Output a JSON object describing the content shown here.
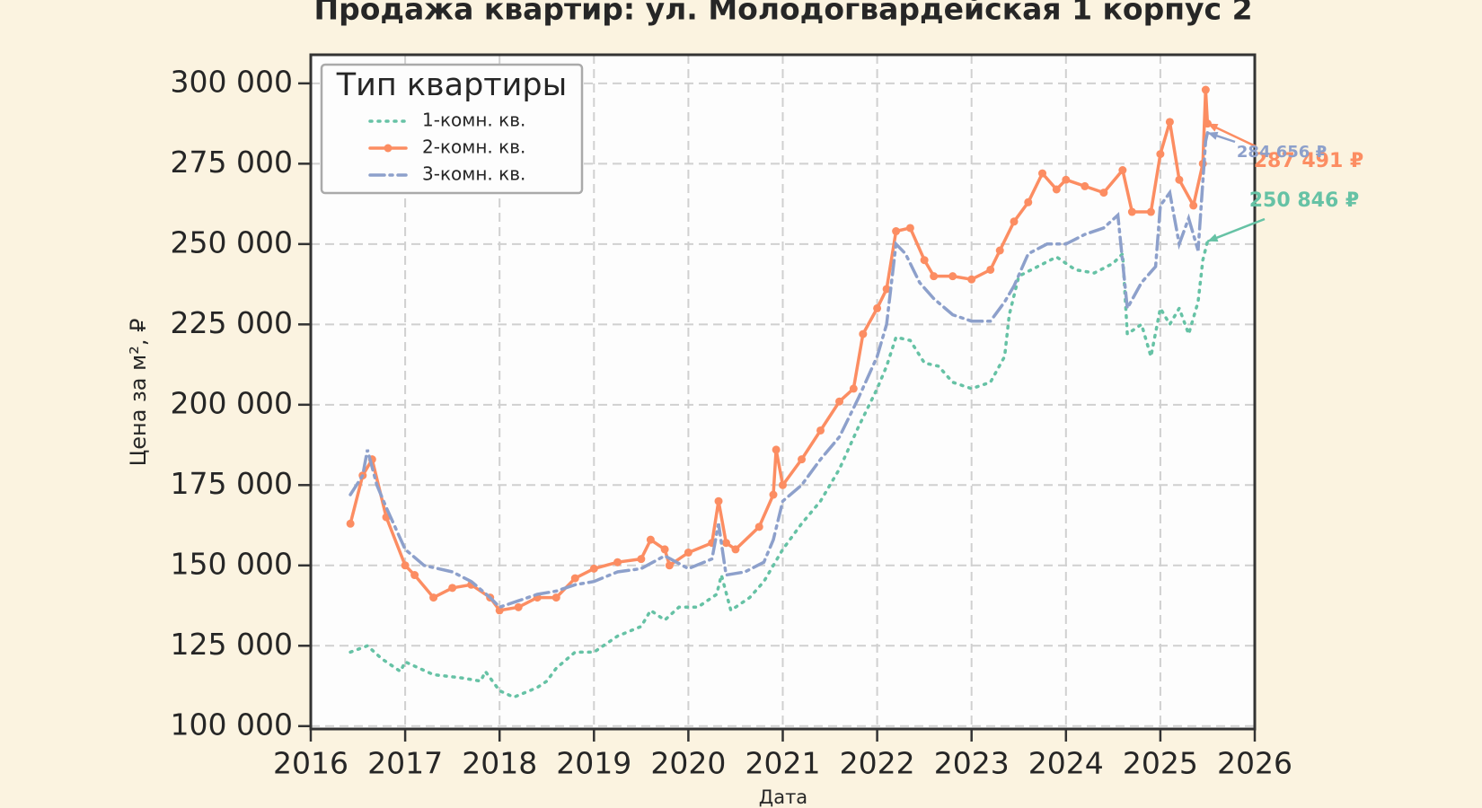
{
  "chart_data": {
    "type": "line",
    "title": "Продажа квартир: ул. Молодогвардейская 1 корпус 2",
    "xlabel": "Дата",
    "ylabel": "Цена за м², ₽",
    "legend_title": "Тип квартиры",
    "legend_position": "upper left",
    "grid": true,
    "xlim": [
      2016,
      2026
    ],
    "xticks": [
      2016,
      2017,
      2018,
      2019,
      2020,
      2021,
      2022,
      2023,
      2024,
      2025,
      2026
    ],
    "ylim": [
      99100,
      308900
    ],
    "yticks": [
      {
        "value": 100000,
        "label": "100 000"
      },
      {
        "value": 125000,
        "label": "125 000"
      },
      {
        "value": 150000,
        "label": "150 000"
      },
      {
        "value": 175000,
        "label": "175 000"
      },
      {
        "value": 200000,
        "label": "200 000"
      },
      {
        "value": 225000,
        "label": "225 000"
      },
      {
        "value": 250000,
        "label": "250 000"
      },
      {
        "value": 275000,
        "label": "275 000"
      },
      {
        "value": 300000,
        "label": "300 000"
      }
    ],
    "series": [
      {
        "name": "1-комн. кв.",
        "color": "#66c2a5",
        "linestyle": "dotted",
        "marker": "none",
        "x": [
          2016.42,
          2016.6,
          2016.75,
          2016.95,
          2017.0,
          2017.3,
          2017.6,
          2017.8,
          2017.85,
          2018.0,
          2018.15,
          2018.4,
          2018.5,
          2018.6,
          2018.8,
          2019.0,
          2019.25,
          2019.5,
          2019.6,
          2019.75,
          2019.9,
          2020.1,
          2020.3,
          2020.35,
          2020.45,
          2020.65,
          2020.8,
          2021.0,
          2021.2,
          2021.4,
          2021.6,
          2021.8,
          2022.0,
          2022.1,
          2022.2,
          2022.35,
          2022.5,
          2022.65,
          2022.8,
          2023.0,
          2023.2,
          2023.35,
          2023.4,
          2023.5,
          2023.7,
          2023.9,
          2024.1,
          2024.3,
          2024.5,
          2024.6,
          2024.65,
          2024.8,
          2024.9,
          2025.0,
          2025.1,
          2025.2,
          2025.3,
          2025.4,
          2025.45,
          2025.5
        ],
        "values": [
          123000,
          125000,
          121000,
          117000,
          120000,
          116000,
          115000,
          114000,
          117000,
          111000,
          109000,
          112000,
          114000,
          118000,
          123000,
          123000,
          128000,
          131000,
          136000,
          133000,
          137000,
          137000,
          141000,
          147000,
          136000,
          140000,
          145000,
          155000,
          163000,
          170000,
          180000,
          193000,
          205000,
          212000,
          221000,
          220000,
          213000,
          212000,
          207000,
          205000,
          207000,
          215000,
          228000,
          240000,
          243000,
          246000,
          242000,
          241000,
          244000,
          247000,
          222000,
          225000,
          215000,
          230000,
          225000,
          230000,
          222000,
          232000,
          245000,
          250846
        ]
      },
      {
        "name": "2-комн. кв.",
        "color": "#fc8d62",
        "linestyle": "solid",
        "marker": "circle",
        "x": [
          2016.42,
          2016.55,
          2016.65,
          2016.8,
          2017.0,
          2017.1,
          2017.3,
          2017.5,
          2017.7,
          2017.9,
          2018.0,
          2018.2,
          2018.4,
          2018.6,
          2018.8,
          2019.0,
          2019.25,
          2019.5,
          2019.6,
          2019.75,
          2019.8,
          2020.0,
          2020.25,
          2020.32,
          2020.4,
          2020.5,
          2020.75,
          2020.9,
          2020.93,
          2021.0,
          2021.2,
          2021.4,
          2021.6,
          2021.75,
          2021.85,
          2022.0,
          2022.1,
          2022.2,
          2022.35,
          2022.5,
          2022.6,
          2022.8,
          2023.0,
          2023.2,
          2023.3,
          2023.45,
          2023.6,
          2023.75,
          2023.9,
          2024.0,
          2024.2,
          2024.4,
          2024.6,
          2024.7,
          2024.9,
          2025.0,
          2025.1,
          2025.2,
          2025.35,
          2025.45,
          2025.48,
          2025.5
        ],
        "values": [
          163000,
          178000,
          183000,
          165000,
          150000,
          147000,
          140000,
          143000,
          144000,
          140000,
          136000,
          137000,
          140000,
          140000,
          146000,
          149000,
          151000,
          152000,
          158000,
          155000,
          150000,
          154000,
          157000,
          170000,
          157000,
          155000,
          162000,
          172000,
          186000,
          175000,
          183000,
          192000,
          201000,
          205000,
          222000,
          230000,
          236000,
          254000,
          255000,
          245000,
          240000,
          240000,
          239000,
          242000,
          248000,
          257000,
          263000,
          272000,
          267000,
          270000,
          268000,
          266000,
          273000,
          260000,
          260000,
          278000,
          288000,
          270000,
          262000,
          275000,
          298000,
          287491
        ]
      },
      {
        "name": "3-комн. кв.",
        "color": "#8da0cb",
        "linestyle": "dashdot",
        "marker": "none",
        "x": [
          2016.42,
          2016.55,
          2016.6,
          2016.7,
          2016.8,
          2017.0,
          2017.2,
          2017.5,
          2017.7,
          2017.9,
          2018.0,
          2018.2,
          2018.4,
          2018.6,
          2018.8,
          2019.0,
          2019.25,
          2019.5,
          2019.75,
          2020.0,
          2020.25,
          2020.32,
          2020.4,
          2020.6,
          2020.8,
          2020.9,
          2021.0,
          2021.2,
          2021.4,
          2021.6,
          2021.8,
          2022.0,
          2022.1,
          2022.2,
          2022.3,
          2022.45,
          2022.6,
          2022.8,
          2023.0,
          2023.2,
          2023.35,
          2023.45,
          2023.6,
          2023.8,
          2024.0,
          2024.2,
          2024.4,
          2024.55,
          2024.65,
          2024.8,
          2024.95,
          2025.0,
          2025.1,
          2025.2,
          2025.3,
          2025.4,
          2025.48,
          2025.5
        ],
        "values": [
          172000,
          178000,
          186000,
          175000,
          168000,
          155000,
          150000,
          148000,
          145000,
          140000,
          137000,
          139000,
          141000,
          142000,
          144000,
          145000,
          148000,
          149000,
          153000,
          149000,
          152000,
          163000,
          147000,
          148000,
          151000,
          158000,
          170000,
          175000,
          183000,
          190000,
          202000,
          215000,
          225000,
          250000,
          247000,
          238000,
          233000,
          228000,
          226000,
          226000,
          232000,
          237000,
          247000,
          250000,
          250000,
          253000,
          255000,
          259000,
          230000,
          238000,
          243000,
          262000,
          266000,
          250000,
          258000,
          248000,
          282000,
          284656
        ]
      }
    ],
    "annotations": [
      {
        "text": "250 846 ₽",
        "value": 250846,
        "color": "#66c2a5"
      },
      {
        "text": "287 491 ₽",
        "value": 287491,
        "color": "#fc8d62"
      },
      {
        "text": "284 656 ₽",
        "value": 284656,
        "color": "#8da0cb"
      }
    ]
  }
}
